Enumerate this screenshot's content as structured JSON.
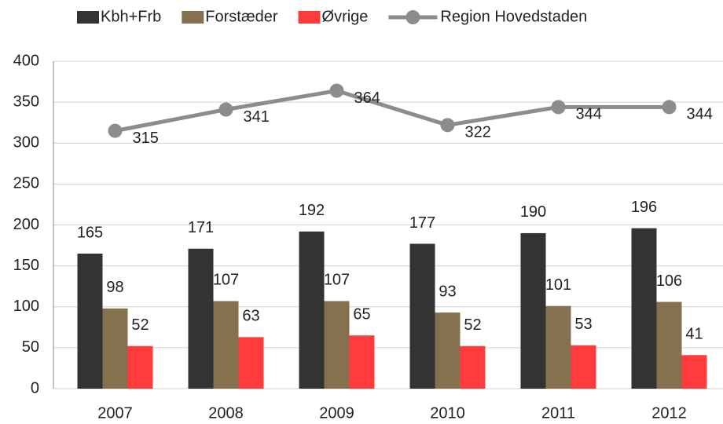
{
  "chart_data": {
    "type": "bar",
    "categories": [
      "2007",
      "2008",
      "2009",
      "2010",
      "2011",
      "2012"
    ],
    "series": [
      {
        "name": "Kbh+Frb",
        "color": "#333333",
        "values": [
          165,
          171,
          192,
          177,
          190,
          196
        ]
      },
      {
        "name": "Forstæder",
        "color": "#85714d",
        "values": [
          98,
          107,
          107,
          93,
          101,
          106
        ]
      },
      {
        "name": "Øvrige",
        "color": "#ff3b3b",
        "values": [
          52,
          63,
          65,
          52,
          53,
          41
        ]
      },
      {
        "name": "Region Hovedstaden",
        "color": "#8c8c8c",
        "type": "line",
        "values": [
          315,
          341,
          364,
          322,
          344,
          344
        ]
      }
    ],
    "ylim": [
      0,
      400
    ],
    "yticks": [
      0,
      50,
      100,
      150,
      200,
      250,
      300,
      350,
      400
    ],
    "grid": true,
    "legend": "top"
  }
}
